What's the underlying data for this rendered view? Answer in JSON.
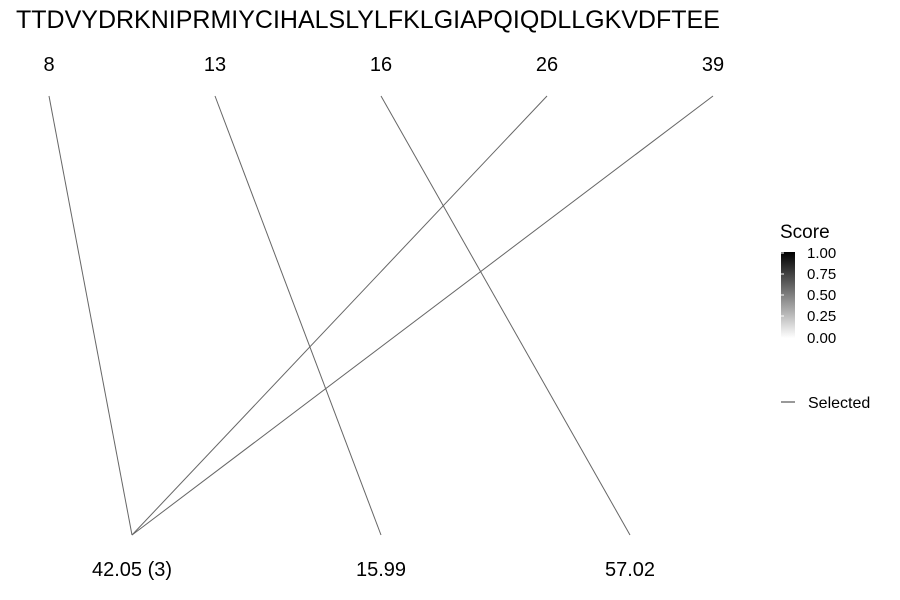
{
  "sequence": "TTDVYDRKNIPRMIYCIHALSLYLFKLGIAPQIQDLLGKVDFTEE",
  "chart_data": {
    "type": "diagram",
    "positions": [
      "8",
      "13",
      "16",
      "26",
      "39"
    ],
    "masses": [
      "42.05 (3)",
      "15.99",
      "57.02"
    ],
    "links": [
      {
        "from": "8",
        "to": "42.05 (3)"
      },
      {
        "from": "26",
        "to": "42.05 (3)"
      },
      {
        "from": "39",
        "to": "42.05 (3)"
      },
      {
        "from": "13",
        "to": "15.99"
      },
      {
        "from": "16",
        "to": "57.02"
      }
    ],
    "legend": {
      "title": "Score",
      "ticks": [
        "1.00",
        "0.75",
        "0.50",
        "0.25",
        "0.00"
      ],
      "gradient": [
        "#000000",
        "#ffffff"
      ],
      "selected_label": "Selected"
    },
    "line_color": "#666666"
  }
}
